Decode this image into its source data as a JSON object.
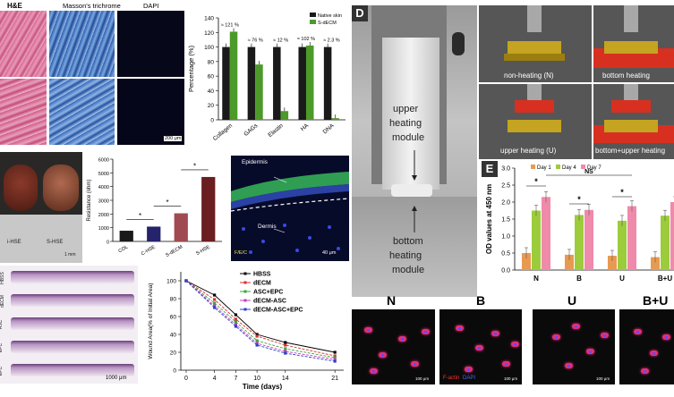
{
  "panel_letters": {
    "d": "D",
    "e": "E"
  },
  "stain_titles": {
    "he": "H&E",
    "masson": "Masson's trichrome",
    "dapi": "DAPI",
    "scale": "200 μm"
  },
  "composition": {
    "legend": [
      "Native skin",
      "S-dECM"
    ],
    "percent_labels": [
      "≈ 121 %",
      "≈ 76 %",
      "≈ 12 %",
      "≈ 102 %",
      "≈ 2.3 %"
    ],
    "colors": {
      "native": "#1a1a1a",
      "sdecm": "#4c9a2a"
    }
  },
  "resistance": {
    "colors": {
      "bar": "#24236b",
      "cap": "#b04848"
    }
  },
  "photo_labels": {
    "left": "i-HSE",
    "right": "S-HSE",
    "scale": "1 mm"
  },
  "fluor": {
    "epidermis": "Epidermis",
    "dermis": "Dermis",
    "channels": "F/E/C",
    "scale": "40 μm"
  },
  "sections": {
    "rows": [
      "HBSS",
      "dECM",
      "ASC",
      "EPC",
      "EPC"
    ],
    "scale": "1000 μm"
  },
  "wound": {
    "colors": {
      "HBSS": "#000000",
      "dECM": "#d93030",
      "ASC+EPC": "#3aa63a",
      "dECM-ASC": "#c040c0",
      "dECM-ASC+EPC": "#2b3fd0"
    }
  },
  "device": {
    "upper": [
      "upper",
      "heating",
      "module"
    ],
    "bottom": [
      "bottom",
      "heating",
      "module"
    ]
  },
  "renders": {
    "labels": [
      "non-heating (N)",
      "bottom heating",
      "upper heating (U)",
      "bottom+upper heating"
    ]
  },
  "od": {
    "legend": [
      "Day 1",
      "Day 4",
      "Day 7"
    ],
    "sig": [
      "*",
      "*",
      "*",
      "NS"
    ],
    "colors": {
      "d1": "#e89a50",
      "d4": "#9ccc3c",
      "d7": "#f08aaa"
    }
  },
  "cells": {
    "labels": [
      "N",
      "B",
      "U",
      "B+U"
    ],
    "stain": "F-actin",
    "stain2": "DAPI",
    "scales": [
      "100 μm",
      "100 μm",
      "100 μm"
    ]
  },
  "chart_data": [
    {
      "type": "bar",
      "title": "",
      "categories": [
        "Collagen",
        "GAGs",
        "Elastin",
        "HA",
        "DNA"
      ],
      "series": [
        {
          "name": "Native skin",
          "values": [
            100,
            100,
            100,
            100,
            100
          ]
        },
        {
          "name": "S-dECM",
          "values": [
            121,
            76,
            12,
            102,
            2.3
          ]
        }
      ],
      "ylabel": "Percentage (%)",
      "ylim": [
        0,
        140
      ],
      "yticks": [
        0,
        20,
        40,
        60,
        80,
        100,
        120,
        140
      ],
      "xlabel": "",
      "legend": "top-right"
    },
    {
      "type": "bar",
      "title": "",
      "categories": [
        "COL",
        "C-HSE",
        "S-dECM",
        "S-HSE"
      ],
      "values": [
        780,
        1080,
        2050,
        4700
      ],
      "ylabel": "Resistance (ohm)",
      "ylim": [
        0,
        6000
      ],
      "yticks": [
        0,
        1000,
        2000,
        3000,
        4000,
        5000,
        6000
      ],
      "xlabel": ""
    },
    {
      "type": "line",
      "title": "",
      "x": [
        0,
        4,
        7,
        10,
        14,
        21
      ],
      "series": [
        {
          "name": "HBSS",
          "values": [
            100,
            84,
            62,
            40,
            31,
            20
          ]
        },
        {
          "name": "dECM",
          "values": [
            100,
            79,
            57,
            38,
            28,
            16
          ]
        },
        {
          "name": "ASC+EPC",
          "values": [
            100,
            75,
            54,
            33,
            24,
            14
          ]
        },
        {
          "name": "dECM-ASC",
          "values": [
            100,
            72,
            51,
            30,
            21,
            12
          ]
        },
        {
          "name": "dECM-ASC+EPC",
          "values": [
            100,
            70,
            49,
            28,
            19,
            10
          ]
        }
      ],
      "xlabel": "Time (days)",
      "ylabel": "Wound Area(% of Initial Area)",
      "xticks": [
        0,
        4,
        7,
        10,
        14,
        21
      ],
      "yticks": [
        0,
        20,
        40,
        60,
        80,
        100
      ],
      "ylim": [
        0,
        110
      ],
      "legend": "top-right"
    },
    {
      "type": "bar",
      "title": "",
      "categories": [
        "N",
        "B",
        "U",
        "B+U"
      ],
      "series": [
        {
          "name": "Day 1",
          "values": [
            0.5,
            0.45,
            0.42,
            0.38
          ]
        },
        {
          "name": "Day 4",
          "values": [
            1.75,
            1.62,
            1.45,
            1.6
          ]
        },
        {
          "name": "Day 7",
          "values": [
            2.15,
            1.77,
            1.88,
            2.0
          ]
        }
      ],
      "ylabel": "OD values at 450 nm",
      "ylim": [
        0,
        3.0
      ],
      "yticks": [
        0.0,
        0.5,
        1.0,
        1.5,
        2.0,
        2.5,
        3.0
      ],
      "xlabel": "",
      "legend": "top"
    }
  ]
}
